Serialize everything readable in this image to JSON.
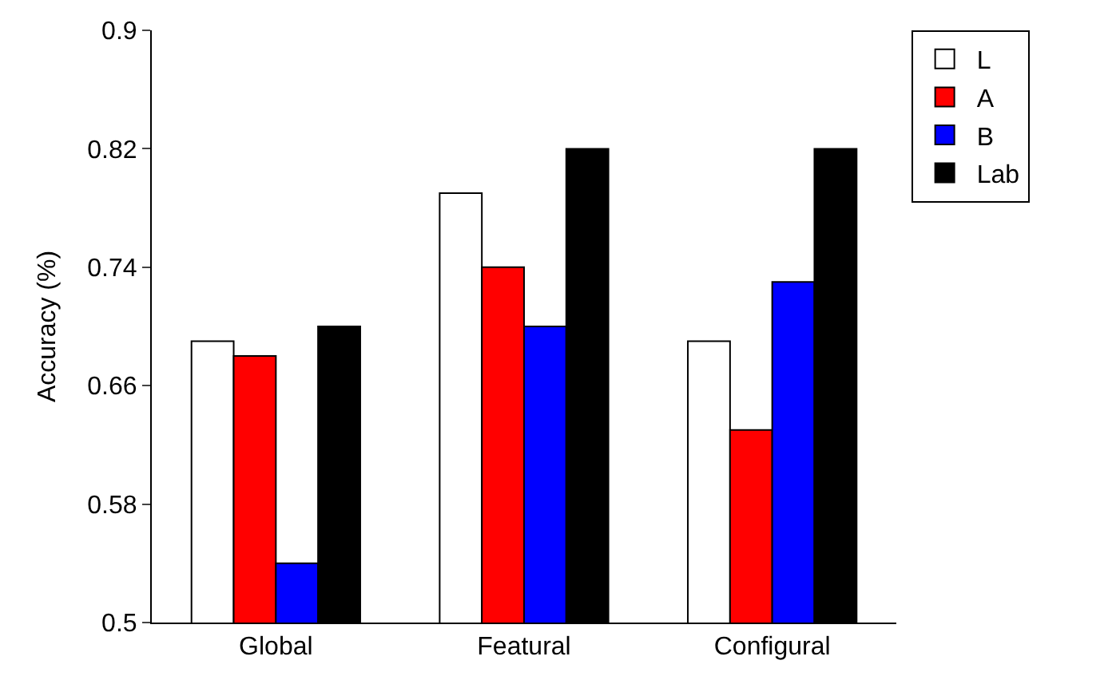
{
  "chart_data": {
    "type": "bar",
    "ylabel": "Accuracy (%)",
    "categories": [
      "Global",
      "Featural",
      "Configural"
    ],
    "series": [
      {
        "name": "L",
        "color": "#ffffff",
        "values": [
          0.69,
          0.79,
          0.69
        ]
      },
      {
        "name": "A",
        "color": "#ff0000",
        "values": [
          0.68,
          0.74,
          0.63
        ]
      },
      {
        "name": "B",
        "color": "#0000ff",
        "values": [
          0.54,
          0.7,
          0.73
        ]
      },
      {
        "name": "Lab",
        "color": "#000000",
        "values": [
          0.7,
          0.82,
          0.82
        ]
      }
    ],
    "ylim": [
      0.5,
      0.9
    ],
    "yticks": [
      0.5,
      0.58,
      0.66,
      0.74,
      0.82,
      0.9
    ],
    "legend": "top right"
  }
}
